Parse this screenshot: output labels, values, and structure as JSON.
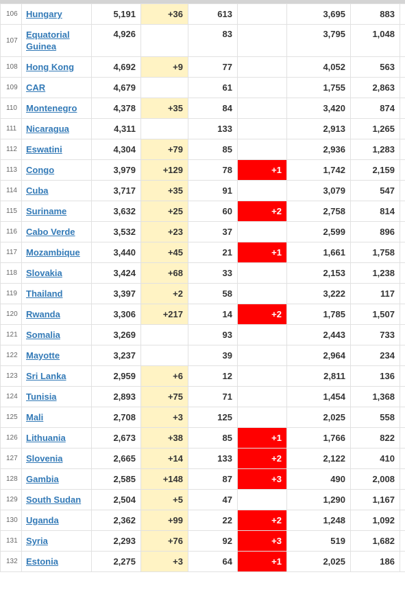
{
  "table": {
    "rows": [
      {
        "rank": "106",
        "country": "Hungary",
        "total_cases": "5,191",
        "new_cases": "+36",
        "total_deaths": "613",
        "new_deaths": "",
        "total_recovered": "3,695",
        "active_cases": "883"
      },
      {
        "rank": "107",
        "country": "Equatorial Guinea",
        "total_cases": "4,926",
        "new_cases": "",
        "total_deaths": "83",
        "new_deaths": "",
        "total_recovered": "3,795",
        "active_cases": "1,048"
      },
      {
        "rank": "108",
        "country": "Hong Kong",
        "total_cases": "4,692",
        "new_cases": "+9",
        "total_deaths": "77",
        "new_deaths": "",
        "total_recovered": "4,052",
        "active_cases": "563"
      },
      {
        "rank": "109",
        "country": "CAR",
        "total_cases": "4,679",
        "new_cases": "",
        "total_deaths": "61",
        "new_deaths": "",
        "total_recovered": "1,755",
        "active_cases": "2,863"
      },
      {
        "rank": "110",
        "country": "Montenegro",
        "total_cases": "4,378",
        "new_cases": "+35",
        "total_deaths": "84",
        "new_deaths": "",
        "total_recovered": "3,420",
        "active_cases": "874"
      },
      {
        "rank": "111",
        "country": "Nicaragua",
        "total_cases": "4,311",
        "new_cases": "",
        "total_deaths": "133",
        "new_deaths": "",
        "total_recovered": "2,913",
        "active_cases": "1,265"
      },
      {
        "rank": "112",
        "country": "Eswatini",
        "total_cases": "4,304",
        "new_cases": "+79",
        "total_deaths": "85",
        "new_deaths": "",
        "total_recovered": "2,936",
        "active_cases": "1,283"
      },
      {
        "rank": "113",
        "country": "Congo",
        "total_cases": "3,979",
        "new_cases": "+129",
        "total_deaths": "78",
        "new_deaths": "+1",
        "total_recovered": "1,742",
        "active_cases": "2,159"
      },
      {
        "rank": "114",
        "country": "Cuba",
        "total_cases": "3,717",
        "new_cases": "+35",
        "total_deaths": "91",
        "new_deaths": "",
        "total_recovered": "3,079",
        "active_cases": "547"
      },
      {
        "rank": "115",
        "country": "Suriname",
        "total_cases": "3,632",
        "new_cases": "+25",
        "total_deaths": "60",
        "new_deaths": "+2",
        "total_recovered": "2,758",
        "active_cases": "814"
      },
      {
        "rank": "116",
        "country": "Cabo Verde",
        "total_cases": "3,532",
        "new_cases": "+23",
        "total_deaths": "37",
        "new_deaths": "",
        "total_recovered": "2,599",
        "active_cases": "896"
      },
      {
        "rank": "117",
        "country": "Mozambique",
        "total_cases": "3,440",
        "new_cases": "+45",
        "total_deaths": "21",
        "new_deaths": "+1",
        "total_recovered": "1,661",
        "active_cases": "1,758"
      },
      {
        "rank": "118",
        "country": "Slovakia",
        "total_cases": "3,424",
        "new_cases": "+68",
        "total_deaths": "33",
        "new_deaths": "",
        "total_recovered": "2,153",
        "active_cases": "1,238"
      },
      {
        "rank": "119",
        "country": "Thailand",
        "total_cases": "3,397",
        "new_cases": "+2",
        "total_deaths": "58",
        "new_deaths": "",
        "total_recovered": "3,222",
        "active_cases": "117"
      },
      {
        "rank": "120",
        "country": "Rwanda",
        "total_cases": "3,306",
        "new_cases": "+217",
        "total_deaths": "14",
        "new_deaths": "+2",
        "total_recovered": "1,785",
        "active_cases": "1,507"
      },
      {
        "rank": "121",
        "country": "Somalia",
        "total_cases": "3,269",
        "new_cases": "",
        "total_deaths": "93",
        "new_deaths": "",
        "total_recovered": "2,443",
        "active_cases": "733"
      },
      {
        "rank": "122",
        "country": "Mayotte",
        "total_cases": "3,237",
        "new_cases": "",
        "total_deaths": "39",
        "new_deaths": "",
        "total_recovered": "2,964",
        "active_cases": "234"
      },
      {
        "rank": "123",
        "country": "Sri Lanka",
        "total_cases": "2,959",
        "new_cases": "+6",
        "total_deaths": "12",
        "new_deaths": "",
        "total_recovered": "2,811",
        "active_cases": "136"
      },
      {
        "rank": "124",
        "country": "Tunisia",
        "total_cases": "2,893",
        "new_cases": "+75",
        "total_deaths": "71",
        "new_deaths": "",
        "total_recovered": "1,454",
        "active_cases": "1,368"
      },
      {
        "rank": "125",
        "country": "Mali",
        "total_cases": "2,708",
        "new_cases": "+3",
        "total_deaths": "125",
        "new_deaths": "",
        "total_recovered": "2,025",
        "active_cases": "558"
      },
      {
        "rank": "126",
        "country": "Lithuania",
        "total_cases": "2,673",
        "new_cases": "+38",
        "total_deaths": "85",
        "new_deaths": "+1",
        "total_recovered": "1,766",
        "active_cases": "822"
      },
      {
        "rank": "127",
        "country": "Slovenia",
        "total_cases": "2,665",
        "new_cases": "+14",
        "total_deaths": "133",
        "new_deaths": "+2",
        "total_recovered": "2,122",
        "active_cases": "410"
      },
      {
        "rank": "128",
        "country": "Gambia",
        "total_cases": "2,585",
        "new_cases": "+148",
        "total_deaths": "87",
        "new_deaths": "+3",
        "total_recovered": "490",
        "active_cases": "2,008"
      },
      {
        "rank": "129",
        "country": "South Sudan",
        "total_cases": "2,504",
        "new_cases": "+5",
        "total_deaths": "47",
        "new_deaths": "",
        "total_recovered": "1,290",
        "active_cases": "1,167"
      },
      {
        "rank": "130",
        "country": "Uganda",
        "total_cases": "2,362",
        "new_cases": "+99",
        "total_deaths": "22",
        "new_deaths": "+2",
        "total_recovered": "1,248",
        "active_cases": "1,092"
      },
      {
        "rank": "131",
        "country": "Syria",
        "total_cases": "2,293",
        "new_cases": "+76",
        "total_deaths": "92",
        "new_deaths": "+3",
        "total_recovered": "519",
        "active_cases": "1,682"
      },
      {
        "rank": "132",
        "country": "Estonia",
        "total_cases": "2,275",
        "new_cases": "+3",
        "total_deaths": "64",
        "new_deaths": "+1",
        "total_recovered": "2,025",
        "active_cases": "186"
      }
    ]
  },
  "colors": {
    "new_cases_highlight": "#fff3c4",
    "new_deaths_highlight": "#ff0000",
    "link": "#337ab7"
  }
}
